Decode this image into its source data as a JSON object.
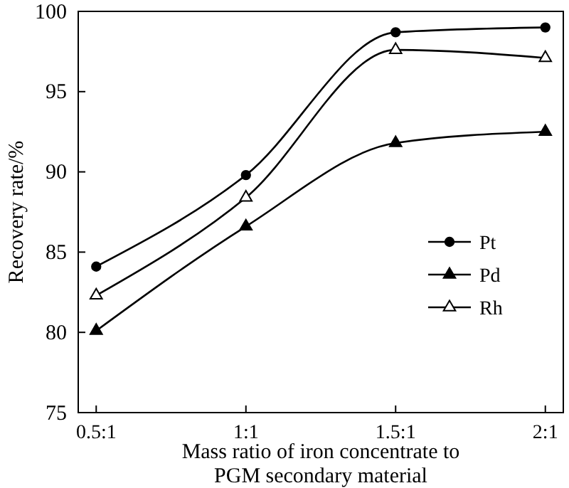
{
  "chart_data": {
    "type": "line",
    "xlabel": "Mass ratio of iron concentrate to\nPGM secondary material",
    "ylabel": "Recovery rate/%",
    "categories": [
      "0.5:1",
      "1:1",
      "1.5:1",
      "2:1"
    ],
    "ylim": [
      75,
      100
    ],
    "yticks": [
      75,
      80,
      85,
      90,
      95,
      100
    ],
    "grid": false,
    "legend": "bottom right",
    "line_style": "solid",
    "series": [
      {
        "name": "Pt",
        "color": "#000000",
        "marker": "circle",
        "values": [
          84.1,
          89.8,
          98.7,
          99.0
        ]
      },
      {
        "name": "Pd",
        "color": "#000000",
        "marker": "triangle",
        "values": [
          80.1,
          86.6,
          91.8,
          92.5
        ]
      },
      {
        "name": "Rh",
        "color": "#000000",
        "marker": "triangle-open",
        "values": [
          82.3,
          88.4,
          97.6,
          97.1
        ]
      }
    ]
  }
}
